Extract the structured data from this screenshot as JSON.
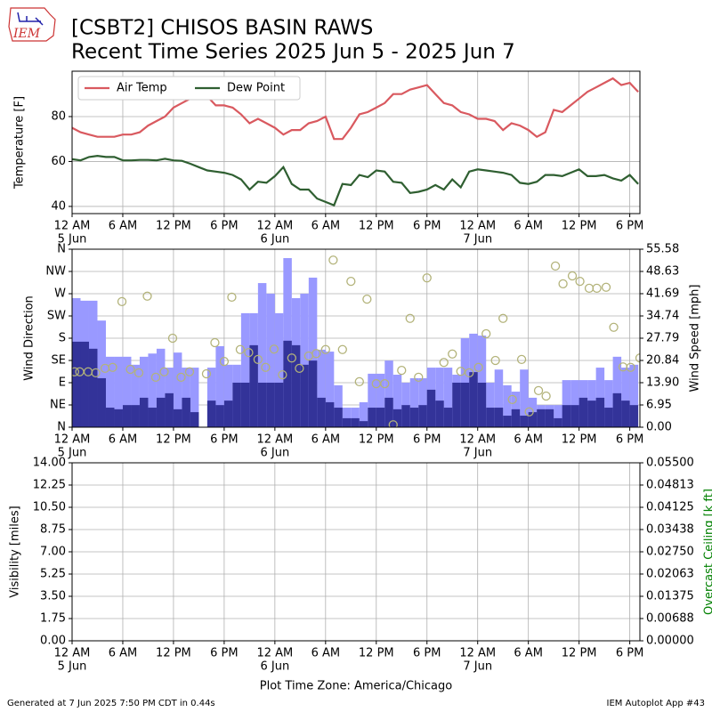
{
  "header": {
    "logo": "IEM",
    "title": "[CSBT2] CHISOS BASIN RAWS",
    "subtitle": "Recent Time Series 2025 Jun 5 - 2025 Jun 7"
  },
  "chart_data": [
    {
      "type": "line",
      "ylabel": "Temperature [F]",
      "xlim": [
        0,
        67.2
      ],
      "ylim": [
        36.8,
        100.2
      ],
      "yticks": [
        40,
        60,
        80
      ],
      "grid": true,
      "legend": "upper left",
      "xticks": [
        {
          "value": 0,
          "label": "12 AM",
          "date": "5 Jun"
        },
        {
          "value": 6,
          "label": "6 AM"
        },
        {
          "value": 12,
          "label": "12 PM"
        },
        {
          "value": 18,
          "label": "6 PM"
        },
        {
          "value": 24,
          "label": "12 AM",
          "date": "6 Jun"
        },
        {
          "value": 30,
          "label": "6 AM"
        },
        {
          "value": 36,
          "label": "12 PM"
        },
        {
          "value": 42,
          "label": "6 PM"
        },
        {
          "value": 48,
          "label": "12 AM",
          "date": "7 Jun"
        },
        {
          "value": 54,
          "label": "6 AM"
        },
        {
          "value": 60,
          "label": "12 PM"
        },
        {
          "value": 66,
          "label": "6 PM"
        }
      ],
      "x": [
        0,
        1,
        2,
        3,
        4,
        5,
        6,
        7,
        8,
        9,
        10,
        11,
        12,
        13,
        14,
        15,
        16,
        17,
        18,
        19,
        20,
        21,
        22,
        23,
        24,
        25,
        26,
        27,
        28,
        29,
        30,
        31,
        32,
        33,
        34,
        35,
        36,
        37,
        38,
        39,
        40,
        41,
        42,
        43,
        44,
        45,
        46,
        47,
        48,
        49,
        50,
        51,
        52,
        53,
        54,
        55,
        56,
        57,
        58,
        59,
        60,
        61,
        62,
        63,
        64,
        65,
        66,
        67
      ],
      "series": [
        {
          "name": "Air Temp",
          "color": "#d9595f",
          "values": [
            75,
            73,
            72,
            71,
            71,
            71,
            72,
            72,
            73,
            76,
            78,
            80,
            84,
            86,
            88,
            89,
            89,
            85,
            85,
            84,
            81,
            77,
            79,
            77,
            75,
            72,
            74,
            74,
            77,
            78,
            80,
            70,
            70,
            75,
            81,
            82,
            84,
            86,
            90,
            90,
            92,
            93,
            94,
            90,
            86,
            85,
            82,
            81,
            79,
            79,
            78,
            74,
            77,
            76,
            74,
            71,
            73,
            83,
            82,
            85,
            88,
            91,
            93,
            95,
            97,
            94,
            95,
            91
          ]
        },
        {
          "name": "Dew Point",
          "color": "#2f5f31",
          "values": [
            61,
            60.5,
            62,
            62.5,
            62,
            62,
            60.5,
            60.5,
            60.7,
            60.7,
            60.5,
            61.2,
            60.5,
            60.3,
            59,
            57.5,
            56,
            55.5,
            55,
            54,
            52,
            47.5,
            51,
            50.5,
            53.5,
            57.5,
            50,
            47.5,
            47.5,
            43.5,
            42,
            40.5,
            50,
            49.5,
            54,
            53,
            56,
            55.5,
            51,
            50.5,
            46,
            46.5,
            47.5,
            49.5,
            47.5,
            52,
            48.5,
            55.5,
            56.5,
            56,
            55.5,
            55,
            54,
            50.5,
            50,
            51,
            54,
            54,
            53.5,
            55,
            56.5,
            53.5,
            53.5,
            54,
            52.5,
            51.5,
            54,
            50
          ]
        }
      ]
    },
    {
      "type": "bar",
      "ylabel": "Wind Direction",
      "y2label": "Wind Speed [mph]",
      "xlim": [
        0,
        67.2
      ],
      "ylim": [
        0,
        360
      ],
      "yticks": [
        {
          "value": 0,
          "label": "N"
        },
        {
          "value": 45,
          "label": "NE"
        },
        {
          "value": 90,
          "label": "E"
        },
        {
          "value": 135,
          "label": "SE"
        },
        {
          "value": 180,
          "label": "S"
        },
        {
          "value": 225,
          "label": "SW"
        },
        {
          "value": 270,
          "label": "W"
        },
        {
          "value": 315,
          "label": "NW"
        },
        {
          "value": 360,
          "label": "N"
        }
      ],
      "y2lim": [
        0,
        55.58
      ],
      "y2ticks": [
        {
          "value": 0,
          "label": "0.00"
        },
        6.95,
        {
          "value": 13.9,
          "label": "13.90"
        },
        20.84,
        27.79,
        34.74,
        41.69,
        48.63,
        55.58
      ],
      "grid": true,
      "xticks": [
        {
          "value": 0,
          "label": "12 AM",
          "date": "5 Jun"
        },
        {
          "value": 6,
          "label": "6 AM"
        },
        {
          "value": 12,
          "label": "12 PM"
        },
        {
          "value": 18,
          "label": "6 PM"
        },
        {
          "value": 24,
          "label": "12 AM",
          "date": "6 Jun"
        },
        {
          "value": 30,
          "label": "6 AM"
        },
        {
          "value": 36,
          "label": "12 PM"
        },
        {
          "value": 42,
          "label": "6 PM"
        },
        {
          "value": 48,
          "label": "12 AM",
          "date": "7 Jun"
        },
        {
          "value": 54,
          "label": "6 AM"
        },
        {
          "value": 60,
          "label": "12 PM"
        },
        {
          "value": 66,
          "label": "6 PM"
        }
      ],
      "x": [
        0,
        1,
        2,
        3,
        4,
        5,
        6,
        7,
        8,
        9,
        10,
        11,
        12,
        13,
        14,
        15,
        16,
        17,
        18,
        19,
        20,
        21,
        22,
        23,
        24,
        25,
        26,
        27,
        28,
        29,
        30,
        31,
        32,
        33,
        34,
        35,
        36,
        37,
        38,
        39,
        40,
        41,
        42,
        43,
        44,
        45,
        46,
        47,
        48,
        49,
        50,
        51,
        52,
        53,
        54,
        55,
        56,
        57,
        58,
        59,
        60,
        61,
        62,
        63,
        64,
        65,
        66
      ],
      "series": [
        {
          "color": "#9999ff",
          "axis": "y2",
          "values": [
            40.3,
            39.5,
            39.5,
            33.3,
            22,
            22,
            22,
            19.5,
            22,
            23,
            24.5,
            18.6,
            23.3,
            18.6,
            18.6,
            0,
            18.6,
            25.3,
            19.5,
            19.5,
            35.6,
            35.6,
            45,
            41.7,
            35.6,
            52.8,
            40.3,
            41.7,
            46.7,
            24.2,
            23.6,
            13.1,
            6.1,
            6.1,
            7.8,
            16.7,
            16.7,
            20.8,
            16.4,
            13.9,
            15.3,
            15.3,
            18.6,
            18.6,
            18.6,
            16.4,
            27.8,
            29.2,
            28.6,
            13.9,
            18,
            13.1,
            11.1,
            18,
            9.2,
            6.9,
            6.9,
            6.9,
            14.7,
            14.7,
            14.7,
            14.7,
            18.6,
            14.7,
            22,
            18.6,
            19.5
          ]
        },
        {
          "color": "#333399",
          "axis": "y2",
          "values": [
            26.7,
            26.7,
            24.5,
            15.3,
            6.1,
            5.6,
            6.9,
            6.9,
            9.2,
            6.1,
            9.2,
            10.6,
            5.6,
            9.2,
            4.7,
            0,
            8.3,
            6.9,
            8.3,
            13.9,
            13.9,
            25.6,
            13.9,
            13.9,
            13.9,
            27,
            25.6,
            19.5,
            20.8,
            9.2,
            7.8,
            6.1,
            2.8,
            2.8,
            1.9,
            6.1,
            6.1,
            9.2,
            5.6,
            6.9,
            6.1,
            6.9,
            11.7,
            8.3,
            6.1,
            13.9,
            13.9,
            17.2,
            13.9,
            6.1,
            6.1,
            3.6,
            5.6,
            3.6,
            4.7,
            5.6,
            5.6,
            2.8,
            6.9,
            6.9,
            9.2,
            8.3,
            9.2,
            6.1,
            10.6,
            8.3,
            6.9
          ]
        },
        {
          "type": "scatter",
          "color": "#b3b37a",
          "axis": "y",
          "x": [
            0.3,
            0.9,
            1.9,
            2.8,
            3.9,
            4.8,
            5.9,
            6.9,
            7.9,
            8.9,
            9.9,
            10.9,
            11.9,
            12.9,
            13.9,
            15.9,
            16.9,
            18,
            18.9,
            19.9,
            20.9,
            22,
            22.9,
            23.9,
            24.9,
            26,
            26.9,
            28,
            28.9,
            30,
            30.9,
            32,
            33,
            34,
            34.9,
            36,
            37,
            38,
            39,
            40,
            41,
            42,
            44,
            45,
            46,
            47,
            48.1,
            49,
            50.1,
            51,
            52.1,
            53.2,
            54.1,
            55.2,
            56.1,
            57.2,
            58.1,
            59.2,
            60.1,
            61.2,
            62.1,
            63.2,
            64.1,
            65.2,
            66.1,
            67.2
          ],
          "values": [
            112,
            112,
            112,
            110,
            119,
            121,
            254,
            117,
            110,
            265,
            101,
            112,
            180,
            101,
            112,
            108,
            171,
            133,
            263,
            157,
            151,
            137,
            121,
            158,
            106,
            140,
            119,
            144,
            149,
            157,
            338,
            157,
            295,
            92,
            259,
            88,
            88,
            5,
            115,
            220,
            101,
            302,
            131,
            148,
            113,
            110,
            121,
            189,
            135,
            220,
            56,
            137,
            31,
            74,
            63,
            326,
            290,
            306,
            295,
            281,
            281,
            283,
            202,
            122,
            121,
            140
          ]
        }
      ]
    },
    {
      "type": "line",
      "ylabel": "Visibility [miles]",
      "y2label": "Overcast Ceiling [k ft]",
      "y2label_color": "green",
      "xlabel": "Plot Time Zone: America/Chicago",
      "xlim": [
        0,
        67.2
      ],
      "ylim": [
        0,
        14
      ],
      "yticks": [
        {
          "value": 0,
          "label": "0.00"
        },
        1.75,
        {
          "value": 3.5,
          "label": "3.50"
        },
        5.25,
        {
          "value": 7,
          "label": "7.00"
        },
        8.75,
        {
          "value": 10.5,
          "label": "10.50"
        },
        12.25,
        {
          "value": 14,
          "label": "14.00"
        }
      ],
      "y2lim": [
        0,
        0.055
      ],
      "y2ticks": [
        {
          "value": 0,
          "label": "0.00000"
        },
        0.00688,
        0.01375,
        0.02063,
        {
          "value": 0.0275,
          "label": "0.02750"
        },
        0.03438,
        0.04125,
        0.04813,
        {
          "value": 0.055,
          "label": "0.05500"
        }
      ],
      "grid": true,
      "xticks": [
        {
          "value": 0,
          "label": "12 AM",
          "date": "5 Jun"
        },
        {
          "value": 6,
          "label": "6 AM"
        },
        {
          "value": 12,
          "label": "12 PM"
        },
        {
          "value": 18,
          "label": "6 PM"
        },
        {
          "value": 24,
          "label": "12 AM",
          "date": "6 Jun"
        },
        {
          "value": 30,
          "label": "6 AM"
        },
        {
          "value": 36,
          "label": "12 PM"
        },
        {
          "value": 42,
          "label": "6 PM"
        },
        {
          "value": 48,
          "label": "12 AM",
          "date": "7 Jun"
        },
        {
          "value": 54,
          "label": "6 AM"
        },
        {
          "value": 60,
          "label": "12 PM"
        },
        {
          "value": 66,
          "label": "6 PM"
        }
      ],
      "series": []
    }
  ],
  "footer": {
    "left": "Generated at 7 Jun 2025 7:50 PM CDT in 0.44s",
    "right": "IEM Autoplot App #43"
  }
}
